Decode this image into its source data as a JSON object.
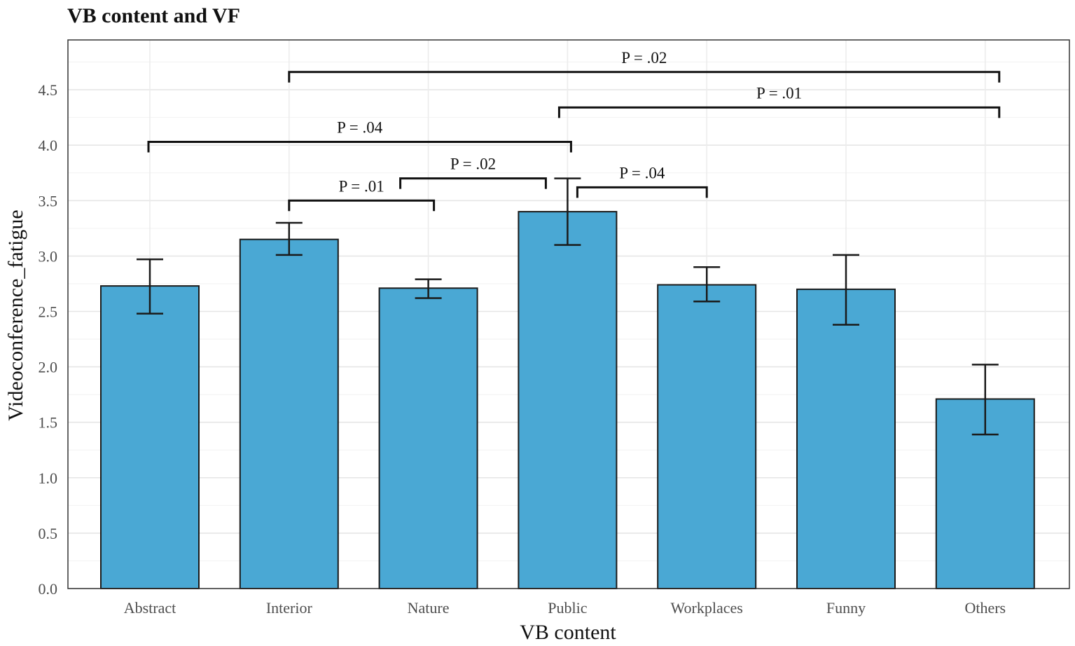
{
  "chart_data": {
    "type": "bar",
    "title": "VB content and VF",
    "xlabel": "VB content",
    "ylabel": "Videoconference_fatigue",
    "ylim": [
      0,
      4.9
    ],
    "yticks": [
      "0.0",
      "0.5",
      "1.0",
      "1.5",
      "2.0",
      "2.5",
      "3.0",
      "3.5",
      "4.0",
      "4.5"
    ],
    "grid": true,
    "bar_color": "#4aa8d4",
    "categories": [
      "Abstract",
      "Interior",
      "Nature",
      "Public",
      "Workplaces",
      "Funny",
      "Others"
    ],
    "values": [
      2.73,
      3.15,
      2.71,
      3.4,
      2.74,
      2.7,
      1.71
    ],
    "error_low": [
      2.48,
      3.01,
      2.62,
      3.1,
      2.59,
      2.38,
      1.39
    ],
    "error_high": [
      2.97,
      3.3,
      2.79,
      3.7,
      2.9,
      3.01,
      2.02
    ],
    "comparisons": [
      {
        "from": 1,
        "to": 6,
        "level": 4.66,
        "label": "P = .02"
      },
      {
        "from": 3,
        "to": 6,
        "level": 4.34,
        "label": "P = .01"
      },
      {
        "from": 0,
        "to": 3,
        "level": 4.03,
        "label": "P = .04"
      },
      {
        "from": 2,
        "to": 3,
        "level": 3.7,
        "label": "P = .02"
      },
      {
        "from": 1,
        "to": 2,
        "level": 3.5,
        "label": "P = .01"
      },
      {
        "from": 3,
        "to": 4,
        "level": 3.62,
        "label": "P = .04"
      }
    ]
  }
}
